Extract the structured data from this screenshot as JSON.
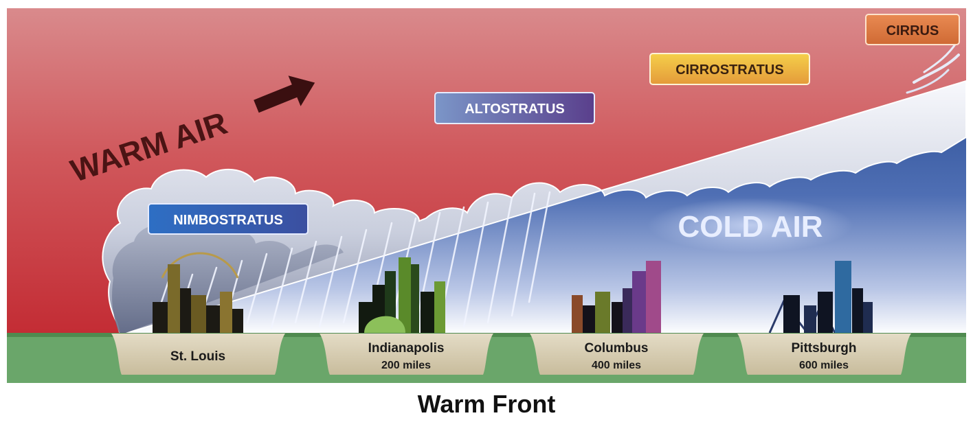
{
  "caption": "Warm Front",
  "air_masses": {
    "warm": "WARM AIR",
    "cold": "COLD AIR"
  },
  "clouds": [
    {
      "id": "nimbostratus",
      "label": "NIMBOSTRATUS"
    },
    {
      "id": "altostratus",
      "label": "ALTOSTRATUS"
    },
    {
      "id": "cirrostratus",
      "label": "CIRROSTRATUS"
    },
    {
      "id": "cirrus",
      "label": "CIRRUS"
    }
  ],
  "cities": [
    {
      "name": "St. Louis",
      "distance": ""
    },
    {
      "name": "Indianapolis",
      "distance": "200 miles"
    },
    {
      "name": "Columbus",
      "distance": "400 miles"
    },
    {
      "name": "Pittsburgh",
      "distance": "600 miles"
    }
  ],
  "colors": {
    "warm_air": "#c8323a",
    "cold_air": "#2f5597",
    "ground": "#6aa66a",
    "plaque": "#d9cfb6",
    "cloud": "#dfe3ee"
  }
}
